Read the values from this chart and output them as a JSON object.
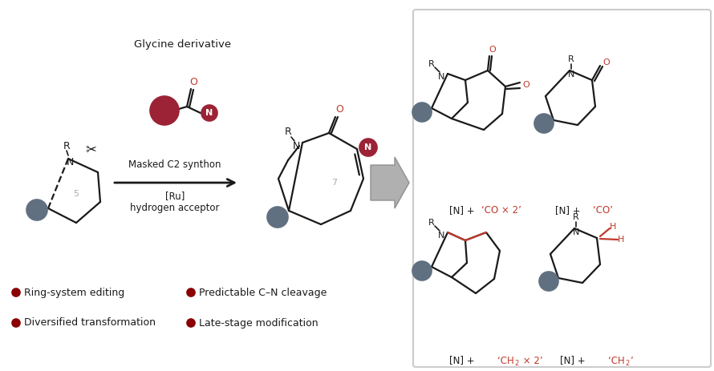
{
  "bg_color": "#ffffff",
  "bullet_color": "#8B0000",
  "bullet_items_row1": [
    "Ring-system editing",
    "Predictable C–N cleavage"
  ],
  "bullet_items_row2": [
    "Diversified transformation",
    "Late-stage modification"
  ],
  "red_color": "#C0392B",
  "dark_red": "#9B2335",
  "gray_color": "#607080",
  "black": "#1a1a1a",
  "light_gray": "#aaaaaa",
  "arrow_gray": "#aaaaaa",
  "glycine_label": "Glycine derivative",
  "masked_label": "Masked C2 synthon",
  "ru_label": "[Ru]",
  "h_acc_label": "hydrogen acceptor"
}
